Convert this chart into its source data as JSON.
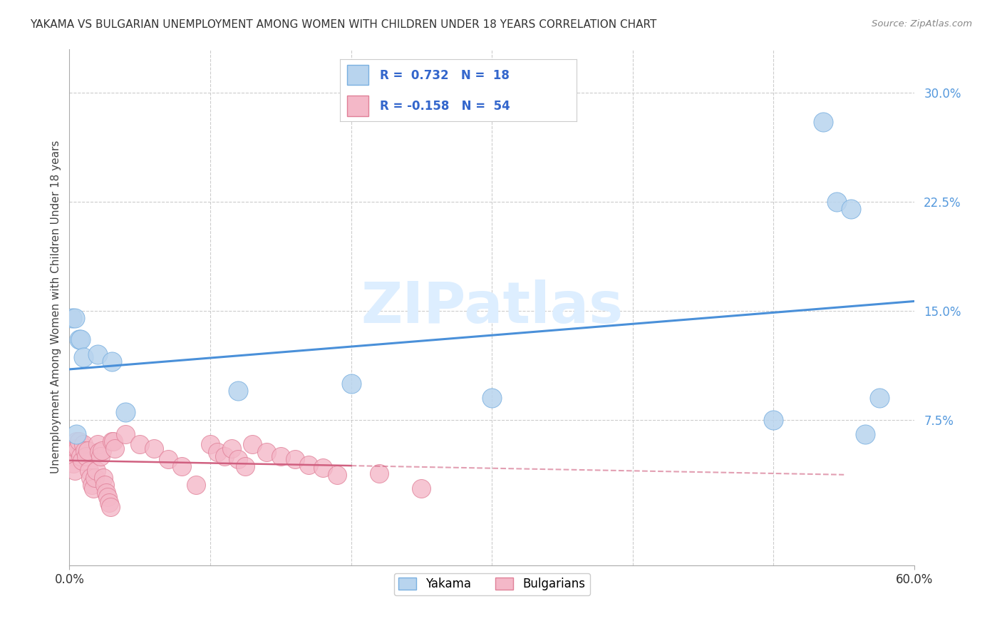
{
  "title": "YAKAMA VS BULGARIAN UNEMPLOYMENT AMONG WOMEN WITH CHILDREN UNDER 18 YEARS CORRELATION CHART",
  "source": "Source: ZipAtlas.com",
  "ylabel": "Unemployment Among Women with Children Under 18 years",
  "xlim": [
    0.0,
    0.6
  ],
  "ylim": [
    -0.025,
    0.33
  ],
  "yticks": [
    0.075,
    0.15,
    0.225,
    0.3
  ],
  "ytick_labels": [
    "7.5%",
    "15.0%",
    "22.5%",
    "30.0%"
  ],
  "yakama_R": 0.732,
  "yakama_N": 18,
  "bulgarian_R": -0.158,
  "bulgarian_N": 54,
  "yakama_color": "#b8d4ee",
  "yakama_edge_color": "#7ab0e0",
  "yakama_line_color": "#4a90d9",
  "bulgarian_color": "#f4b8c8",
  "bulgarian_edge_color": "#e08098",
  "bulgarian_line_color": "#d06080",
  "background_color": "#ffffff",
  "grid_color": "#cccccc",
  "watermark_color": "#ddeeff",
  "legend_r_n_color": "#3366cc",
  "ytick_color": "#5599dd",
  "xtick_color": "#333333",
  "yakama_x": [
    0.002,
    0.004,
    0.005,
    0.007,
    0.008,
    0.01,
    0.02,
    0.03,
    0.04,
    0.12,
    0.2,
    0.3,
    0.5,
    0.535,
    0.545,
    0.555,
    0.565,
    0.575
  ],
  "yakama_y": [
    0.145,
    0.145,
    0.065,
    0.13,
    0.13,
    0.118,
    0.12,
    0.115,
    0.08,
    0.095,
    0.1,
    0.09,
    0.075,
    0.28,
    0.225,
    0.22,
    0.065,
    0.09
  ],
  "bulgarian_x": [
    0.001,
    0.002,
    0.003,
    0.004,
    0.005,
    0.005,
    0.006,
    0.007,
    0.008,
    0.009,
    0.01,
    0.011,
    0.012,
    0.013,
    0.014,
    0.015,
    0.016,
    0.017,
    0.018,
    0.019,
    0.02,
    0.021,
    0.022,
    0.023,
    0.024,
    0.025,
    0.026,
    0.027,
    0.028,
    0.029,
    0.03,
    0.031,
    0.032,
    0.04,
    0.05,
    0.06,
    0.07,
    0.08,
    0.09,
    0.1,
    0.105,
    0.11,
    0.115,
    0.12,
    0.125,
    0.13,
    0.14,
    0.15,
    0.16,
    0.17,
    0.18,
    0.19,
    0.22,
    0.25
  ],
  "bulgarian_y": [
    0.055,
    0.05,
    0.045,
    0.04,
    0.06,
    0.055,
    0.055,
    0.06,
    0.05,
    0.047,
    0.058,
    0.054,
    0.05,
    0.054,
    0.04,
    0.035,
    0.03,
    0.028,
    0.035,
    0.04,
    0.058,
    0.053,
    0.05,
    0.054,
    0.035,
    0.03,
    0.025,
    0.022,
    0.018,
    0.015,
    0.06,
    0.06,
    0.055,
    0.065,
    0.058,
    0.055,
    0.048,
    0.043,
    0.03,
    0.058,
    0.053,
    0.05,
    0.055,
    0.048,
    0.043,
    0.058,
    0.053,
    0.05,
    0.048,
    0.044,
    0.042,
    0.037,
    0.038,
    0.028
  ]
}
